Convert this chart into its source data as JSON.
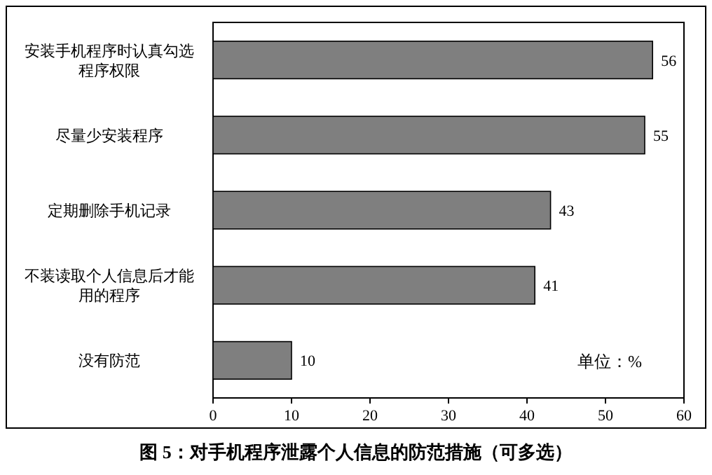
{
  "chart_data": {
    "type": "bar",
    "orientation": "horizontal",
    "title": "图 5：对手机程序泄露个人信息的防范措施（可多选）",
    "categories": [
      "安装手机程序时认真勾选程序权限",
      "尽量少安装程序",
      "定期删除手机记录",
      "不装读取个人信息后才能用的程序",
      "没有防范"
    ],
    "values": [
      56,
      55,
      43,
      41,
      10
    ],
    "color": "#7f7f7f",
    "data_labels": true,
    "xlim": [
      0,
      60
    ],
    "xticks": [
      0,
      10,
      20,
      30,
      40,
      50,
      60
    ],
    "annotations": [
      "单位：%"
    ]
  }
}
